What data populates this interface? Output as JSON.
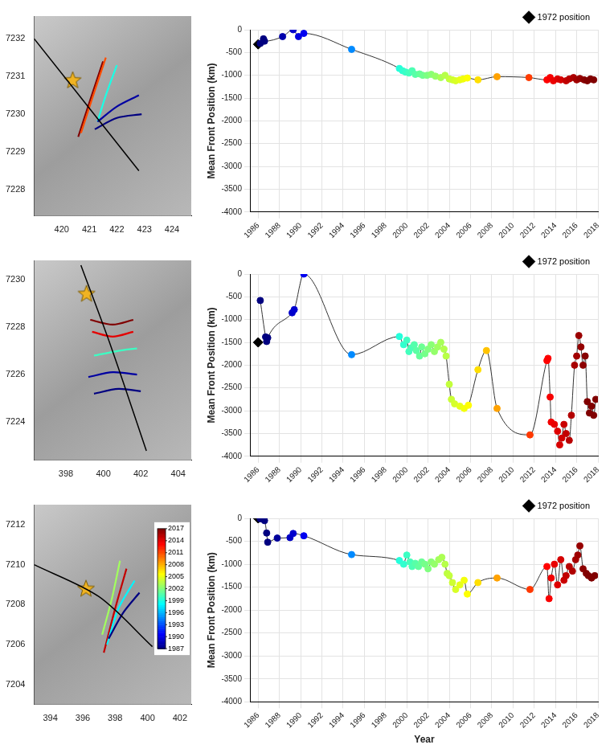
{
  "chart_data": [
    {
      "type": "map",
      "grid": false,
      "xlim": [
        419,
        424.7
      ],
      "xticks": [
        420,
        421,
        422,
        423,
        424
      ],
      "ylim": [
        7227.3,
        7232.6
      ],
      "yticks": [
        7228,
        7229,
        7230,
        7231,
        7232
      ],
      "series": [
        {
          "color": "#000000",
          "x": [
            419,
            422.8
          ],
          "y": [
            7232,
            7228.5
          ]
        },
        {
          "year": 1987,
          "x": [
            421.2,
            422.0,
            422.9
          ],
          "y": [
            7229.6,
            7229.9,
            7230.0
          ]
        },
        {
          "year": 1988,
          "x": [
            421.3,
            422.0,
            422.8
          ],
          "y": [
            7229.8,
            7230.2,
            7230.5
          ]
        },
        {
          "year": 1999,
          "x": [
            421.3,
            421.6,
            422.0
          ],
          "y": [
            7229.8,
            7230.5,
            7231.3
          ]
        },
        {
          "year": 2011,
          "x": [
            420.7,
            421.1,
            421.6
          ],
          "y": [
            7229.5,
            7230.4,
            7231.5
          ]
        },
        {
          "year": 2017,
          "x": [
            420.6,
            421.0,
            421.5
          ],
          "y": [
            7229.4,
            7230.3,
            7231.4
          ]
        },
        {
          "marker": "star",
          "color": "#f0b323",
          "x": [
            420.4
          ],
          "y": [
            7230.9
          ]
        }
      ]
    },
    {
      "type": "line",
      "ylabel": "Mean Front Position (km)",
      "grid": true,
      "legend": "top-right",
      "xlim": [
        1985.3,
        2018
      ],
      "xticks": [
        1986,
        1988,
        1990,
        1992,
        1994,
        1996,
        1998,
        2000,
        2002,
        2004,
        2006,
        2008,
        2010,
        2012,
        2014,
        2016,
        2018
      ],
      "ylim": [
        -4000,
        0
      ],
      "yticks": [
        -4000,
        -3500,
        -3000,
        -2500,
        -2000,
        -1500,
        -1000,
        -500,
        0
      ],
      "series": [
        {
          "color": "#333333",
          "marker": "circle",
          "x": [
            1986.2,
            1986.5,
            1986.6,
            1988.3,
            1989.3,
            1989.8,
            1990.3,
            1994.8,
            1999.3,
            1999.6,
            1999.9,
            2000.2,
            2000.5,
            2000.8,
            2001.2,
            2001.5,
            2001.9,
            2002.3,
            2002.7,
            2003.2,
            2003.6,
            2004.0,
            2004.3,
            2004.6,
            2005.0,
            2005.3,
            2005.7,
            2006.7,
            2008.5,
            2011.5,
            2013.2,
            2013.5,
            2013.8,
            2014.2,
            2014.5,
            2015.0,
            2015.3,
            2015.7,
            2016.0,
            2016.3,
            2016.7,
            2017.0,
            2017.3,
            2017.6
          ],
          "values": [
            -300,
            -200,
            -250,
            -150,
            0,
            -150,
            -80,
            -430,
            -850,
            -900,
            -930,
            -950,
            -900,
            -980,
            -970,
            -1000,
            -1000,
            -980,
            -1020,
            -1050,
            -1000,
            -1080,
            -1100,
            -1120,
            -1100,
            -1080,
            -1060,
            -1100,
            -1030,
            -1050,
            -1100,
            -1050,
            -1120,
            -1080,
            -1100,
            -1120,
            -1080,
            -1050,
            -1100,
            -1070,
            -1100,
            -1120,
            -1080,
            -1100
          ]
        },
        {
          "name": "1972 position",
          "color": "#000000",
          "marker": "diamond",
          "x": [
            1986.0
          ],
          "values": [
            -320
          ]
        }
      ]
    },
    {
      "type": "map",
      "grid": false,
      "xlim": [
        396.3,
        404.7
      ],
      "xticks": [
        398,
        400,
        402,
        404
      ],
      "ylim": [
        7222.4,
        7230.8
      ],
      "yticks": [
        7224,
        7226,
        7228,
        7230
      ],
      "series": [
        {
          "color": "#000000",
          "x": [
            398.8,
            400.4,
            402.3
          ],
          "y": [
            7230.6,
            7227.2,
            7222.8
          ]
        },
        {
          "year": 1987,
          "x": [
            399.5,
            400.8,
            402.0
          ],
          "y": [
            7225.2,
            7225.4,
            7225.3
          ]
        },
        {
          "year": 1988,
          "x": [
            399.2,
            400.5,
            401.8
          ],
          "y": [
            7225.9,
            7226.1,
            7226.0
          ]
        },
        {
          "year": 2000,
          "x": [
            399.5,
            400.8,
            401.8
          ],
          "y": [
            7226.8,
            7227.0,
            7227.1
          ]
        },
        {
          "year": 2014,
          "x": [
            399.4,
            400.5,
            401.6
          ],
          "y": [
            7227.8,
            7227.6,
            7227.8
          ]
        },
        {
          "year": 2017,
          "x": [
            399.3,
            400.5,
            401.6
          ],
          "y": [
            7228.3,
            7228.1,
            7228.3
          ]
        },
        {
          "marker": "star",
          "color": "#f0b323",
          "x": [
            399.1
          ],
          "y": [
            7229.4
          ]
        }
      ]
    },
    {
      "type": "line",
      "ylabel": "Mean Front Position (km)",
      "grid": true,
      "legend": "top-right",
      "xlim": [
        1985.3,
        2018
      ],
      "xticks": [
        1986,
        1988,
        1990,
        1992,
        1994,
        1996,
        1998,
        2000,
        2002,
        2004,
        2006,
        2008,
        2010,
        2012,
        2014,
        2016,
        2018
      ],
      "ylim": [
        -4000,
        0
      ],
      "yticks": [
        -4000,
        -3500,
        -3000,
        -2500,
        -2000,
        -1500,
        -1000,
        -500,
        0
      ],
      "series": [
        {
          "color": "#333333",
          "marker": "circle",
          "x": [
            1986.2,
            1986.7,
            1986.8,
            1986.9,
            1989.2,
            1989.4,
            1990.3,
            1994.8,
            1999.3,
            1999.7,
            2000.0,
            2000.2,
            2000.4,
            2000.7,
            2000.9,
            2001.2,
            2001.4,
            2001.7,
            2002.0,
            2002.3,
            2002.6,
            2002.9,
            2003.2,
            2003.5,
            2003.7,
            2004.0,
            2004.2,
            2004.5,
            2005.0,
            2005.4,
            2005.8,
            2006.7,
            2007.5,
            2008.5,
            2011.6,
            2013.2,
            2013.3,
            2013.5,
            2013.6,
            2013.9,
            2014.2,
            2014.4,
            2014.6,
            2014.8,
            2015.0,
            2015.3,
            2015.5,
            2015.8,
            2016.0,
            2016.2,
            2016.4,
            2016.6,
            2016.8,
            2017.0,
            2017.2,
            2017.4,
            2017.6,
            2017.8
          ],
          "values": [
            -580,
            -1380,
            -1480,
            -1400,
            -850,
            -780,
            0,
            -1770,
            -1370,
            -1550,
            -1450,
            -1700,
            -1620,
            -1550,
            -1680,
            -1800,
            -1600,
            -1750,
            -1650,
            -1550,
            -1700,
            -1600,
            -1500,
            -1650,
            -1800,
            -2420,
            -2750,
            -2850,
            -2900,
            -2950,
            -2880,
            -2100,
            -1680,
            -2950,
            -3530,
            -1900,
            -1850,
            -2700,
            -3250,
            -3300,
            -3450,
            -3750,
            -3600,
            -3300,
            -3500,
            -3650,
            -3100,
            -2000,
            -1800,
            -1350,
            -1600,
            -2000,
            -1800,
            -2800,
            -3050,
            -2900,
            -3100,
            -2750
          ]
        },
        {
          "name": "1972 position",
          "color": "#000000",
          "marker": "diamond",
          "x": [
            1986.0
          ],
          "values": [
            -1500
          ]
        }
      ]
    },
    {
      "type": "map",
      "grid": false,
      "xlim": [
        393,
        402.7
      ],
      "xticks": [
        394,
        396,
        398,
        400,
        402
      ],
      "ylim": [
        7203,
        7213
      ],
      "yticks": [
        7204,
        7206,
        7208,
        7210,
        7212
      ],
      "colorbar": {
        "lim": [
          1987,
          2017
        ],
        "ticks": [
          1987,
          1990,
          1993,
          1996,
          1999,
          2002,
          2005,
          2008,
          2011,
          2014,
          2017
        ]
      },
      "series": [
        {
          "color": "#000000",
          "x": [
            393,
            397,
            400.3
          ],
          "y": [
            7210,
            7208.4,
            7205.9
          ]
        },
        {
          "year": 1987,
          "x": [
            397.6,
            398.5,
            399.5
          ],
          "y": [
            7206.3,
            7207.6,
            7208.6
          ]
        },
        {
          "year": 1998,
          "x": [
            397.5,
            398.2,
            399.2
          ],
          "y": [
            7206.0,
            7207.8,
            7209.2
          ]
        },
        {
          "year": 2003,
          "x": [
            397.2,
            397.8,
            398.3
          ],
          "y": [
            7206.5,
            7208.3,
            7210.2
          ]
        },
        {
          "year": 2015,
          "x": [
            397.3,
            398.0,
            398.7
          ],
          "y": [
            7205.6,
            7207.8,
            7209.8
          ]
        },
        {
          "marker": "star",
          "color": "#f0b323",
          "x": [
            396.2
          ],
          "y": [
            7208.8
          ]
        }
      ]
    },
    {
      "type": "line",
      "ylabel": "Mean Front Position (km)",
      "xlabel": "Year",
      "grid": true,
      "legend": "top-right",
      "xlim": [
        1985.3,
        2018
      ],
      "xticks": [
        1986,
        1988,
        1990,
        1992,
        1994,
        1996,
        1998,
        2000,
        2002,
        2004,
        2006,
        2008,
        2010,
        2012,
        2014,
        2016,
        2018
      ],
      "ylim": [
        -4000,
        0
      ],
      "yticks": [
        -4000,
        -3500,
        -3000,
        -2500,
        -2000,
        -1500,
        -1000,
        -500,
        0
      ],
      "series": [
        {
          "color": "#333333",
          "marker": "circle",
          "x": [
            1986.2,
            1986.6,
            1986.8,
            1986.9,
            1987.8,
            1989.0,
            1989.3,
            1990.3,
            1994.8,
            1999.3,
            1999.7,
            2000.0,
            2000.3,
            2000.5,
            2000.8,
            2001.1,
            2001.4,
            2001.7,
            2002.0,
            2002.3,
            2002.6,
            2003.0,
            2003.3,
            2003.6,
            2003.8,
            2004.0,
            2004.3,
            2004.6,
            2005.0,
            2005.4,
            2005.7,
            2006.7,
            2008.5,
            2011.6,
            2013.2,
            2013.4,
            2013.6,
            2013.9,
            2014.2,
            2014.5,
            2014.8,
            2015.0,
            2015.3,
            2015.6,
            2015.9,
            2016.1,
            2016.3,
            2016.6,
            2016.9,
            2017.1,
            2017.4,
            2017.7
          ],
          "values": [
            -10,
            -50,
            -320,
            -520,
            -430,
            -420,
            -330,
            -380,
            -790,
            -920,
            -1000,
            -800,
            -950,
            -1050,
            -980,
            -1050,
            -950,
            -1000,
            -1100,
            -950,
            -1000,
            -900,
            -850,
            -1000,
            -1200,
            -1250,
            -1400,
            -1550,
            -1450,
            -1350,
            -1650,
            -1400,
            -1300,
            -1550,
            -1050,
            -1750,
            -1300,
            -1000,
            -1450,
            -900,
            -1350,
            -1250,
            -1050,
            -1150,
            -900,
            -800,
            -600,
            -1100,
            -1200,
            -1250,
            -1300,
            -1250
          ]
        },
        {
          "name": "1972 position",
          "color": "#000000",
          "marker": "diamond",
          "x": [
            1986.0
          ],
          "values": [
            0
          ]
        }
      ]
    }
  ]
}
